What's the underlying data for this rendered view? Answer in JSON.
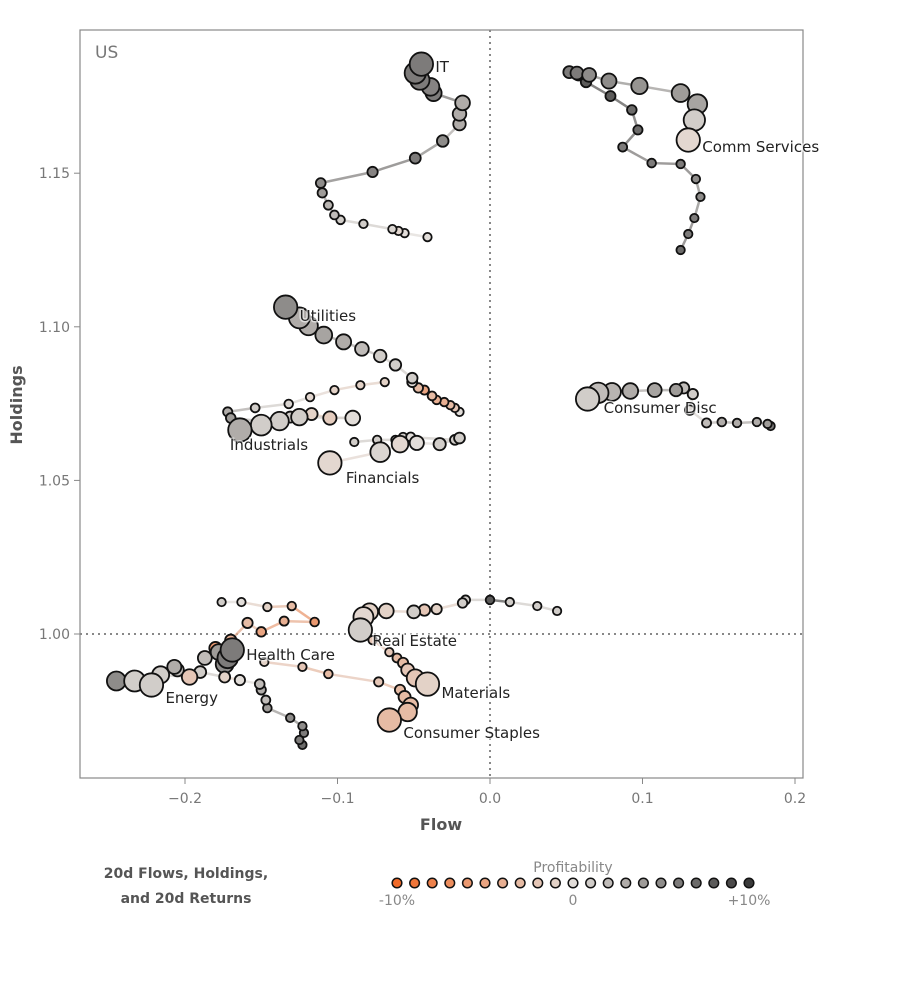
{
  "chart_data": {
    "type": "scatter",
    "panel_label": "US",
    "xlabel": "Flow",
    "ylabel": "Holdings",
    "xlim": [
      -0.269,
      0.205
    ],
    "ylim": [
      0.953,
      1.197
    ],
    "xticks": [
      -0.2,
      -0.1,
      0.0,
      0.1,
      0.2
    ],
    "xtick_labels": [
      "−0.2",
      "−0.1",
      "0.0",
      "0.1",
      "0.2"
    ],
    "yticks": [
      1.0,
      1.05,
      1.1,
      1.15
    ],
    "ytick_labels": [
      "1.00",
      "1.05",
      "1.10",
      "1.15"
    ],
    "reference_lines": {
      "x": 0.0,
      "y": 1.0,
      "style": "dotted"
    },
    "grid": false,
    "color_by": "profitability",
    "series": [
      {
        "name": "IT",
        "points": [
          [
            -0.041,
            1.1292,
            0.0
          ],
          [
            -0.056,
            1.1305,
            0.0
          ],
          [
            -0.06,
            1.1312,
            -0.005
          ],
          [
            -0.064,
            1.1318,
            0.005
          ],
          [
            -0.083,
            1.1335,
            0.01
          ],
          [
            -0.098,
            1.1348,
            0.01
          ],
          [
            -0.102,
            1.1364,
            0.02
          ],
          [
            -0.106,
            1.1396,
            0.025
          ],
          [
            -0.11,
            1.1436,
            0.04
          ],
          [
            -0.111,
            1.1468,
            0.05
          ],
          [
            -0.077,
            1.1504,
            0.055
          ],
          [
            -0.049,
            1.1549,
            0.06
          ],
          [
            -0.031,
            1.1605,
            0.05
          ],
          [
            -0.02,
            1.166,
            0.03
          ],
          [
            -0.02,
            1.1693,
            0.03
          ],
          [
            -0.018,
            1.1729,
            0.03
          ],
          [
            -0.037,
            1.1761,
            0.06
          ],
          [
            -0.039,
            1.1781,
            0.055
          ],
          [
            -0.046,
            1.1803,
            0.06
          ],
          [
            -0.049,
            1.1826,
            0.06
          ],
          [
            -0.045,
            1.1855,
            0.06
          ]
        ]
      },
      {
        "name": "Comm Services",
        "points": [
          [
            0.125,
            1.125,
            0.07
          ],
          [
            0.13,
            1.1302,
            0.06
          ],
          [
            0.134,
            1.1354,
            0.06
          ],
          [
            0.138,
            1.1423,
            0.05
          ],
          [
            0.135,
            1.1481,
            0.05
          ],
          [
            0.125,
            1.153,
            0.06
          ],
          [
            0.106,
            1.1533,
            0.06
          ],
          [
            0.087,
            1.1585,
            0.06
          ],
          [
            0.097,
            1.1641,
            0.07
          ],
          [
            0.093,
            1.1706,
            0.07
          ],
          [
            0.079,
            1.1751,
            0.08
          ],
          [
            0.063,
            1.1797,
            0.08
          ],
          [
            0.058,
            1.182,
            0.07
          ],
          [
            0.052,
            1.1829,
            0.06
          ],
          [
            0.057,
            1.1826,
            0.06
          ],
          [
            0.065,
            1.182,
            0.05
          ],
          [
            0.078,
            1.18,
            0.05
          ],
          [
            0.098,
            1.1784,
            0.045
          ],
          [
            0.125,
            1.1761,
            0.04
          ],
          [
            0.136,
            1.1725,
            0.035
          ],
          [
            0.134,
            1.1673,
            0.01
          ],
          [
            0.13,
            1.1608,
            -0.005
          ]
        ]
      },
      {
        "name": "Utilities",
        "points": [
          [
            -0.02,
            1.0723,
            0.0
          ],
          [
            -0.023,
            1.0736,
            -0.02
          ],
          [
            -0.026,
            1.0745,
            -0.03
          ],
          [
            -0.03,
            1.0755,
            -0.04
          ],
          [
            -0.035,
            1.0762,
            -0.04
          ],
          [
            -0.038,
            1.0775,
            -0.03
          ],
          [
            -0.043,
            1.0794,
            -0.05
          ],
          [
            -0.047,
            1.0801,
            -0.03
          ],
          [
            -0.051,
            1.082,
            0.0
          ],
          [
            -0.051,
            1.0833,
            0.01
          ],
          [
            -0.062,
            1.0876,
            0.01
          ],
          [
            -0.072,
            1.0905,
            0.01
          ],
          [
            -0.084,
            1.0928,
            0.02
          ],
          [
            -0.096,
            1.0951,
            0.03
          ],
          [
            -0.109,
            1.0973,
            0.035
          ],
          [
            -0.119,
            1.1003,
            0.03
          ],
          [
            -0.125,
            1.1029,
            0.03
          ],
          [
            -0.134,
            1.1064,
            0.05
          ]
        ]
      },
      {
        "name": "Industrials",
        "points": [
          [
            -0.069,
            1.082,
            -0.01
          ],
          [
            -0.085,
            1.081,
            -0.01
          ],
          [
            -0.102,
            1.0794,
            -0.01
          ],
          [
            -0.118,
            1.0771,
            -0.005
          ],
          [
            -0.132,
            1.0749,
            0.005
          ],
          [
            -0.154,
            1.0736,
            0.01
          ],
          [
            -0.172,
            1.0723,
            0.03
          ],
          [
            -0.17,
            1.0703,
            0.04
          ],
          [
            -0.15,
            1.0693,
            0.02
          ],
          [
            -0.131,
            1.0706,
            0.01
          ],
          [
            -0.117,
            1.0716,
            -0.01
          ],
          [
            -0.105,
            1.0703,
            -0.015
          ],
          [
            -0.09,
            1.0703,
            0.0
          ],
          [
            -0.125,
            1.0706,
            0.01
          ],
          [
            -0.138,
            1.0693,
            0.01
          ],
          [
            -0.15,
            1.068,
            0.01
          ],
          [
            -0.164,
            1.0664,
            0.03
          ]
        ]
      },
      {
        "name": "Financials",
        "points": [
          [
            -0.089,
            1.0625,
            0.01
          ],
          [
            -0.074,
            1.0632,
            0.01
          ],
          [
            -0.062,
            1.0632,
            0.01
          ],
          [
            -0.057,
            1.0641,
            0.01
          ],
          [
            -0.052,
            1.0641,
            0.0
          ],
          [
            -0.023,
            1.0632,
            0.01
          ],
          [
            -0.02,
            1.0638,
            0.01
          ],
          [
            -0.033,
            1.0618,
            0.01
          ],
          [
            -0.048,
            1.0622,
            0.0
          ],
          [
            -0.059,
            1.0618,
            -0.005
          ],
          [
            -0.072,
            1.0592,
            0.005
          ],
          [
            -0.105,
            1.0557,
            -0.005
          ]
        ]
      },
      {
        "name": "Consumer Disc",
        "points": [
          [
            0.184,
            1.0677,
            0.06
          ],
          [
            0.182,
            1.0684,
            0.04
          ],
          [
            0.175,
            1.069,
            0.03
          ],
          [
            0.162,
            1.0687,
            0.03
          ],
          [
            0.152,
            1.069,
            0.03
          ],
          [
            0.142,
            1.0687,
            0.02
          ],
          [
            0.131,
            1.0729,
            0.005
          ],
          [
            0.133,
            1.0781,
            0.01
          ],
          [
            0.127,
            1.0801,
            0.02
          ],
          [
            0.122,
            1.0794,
            0.04
          ],
          [
            0.108,
            1.0794,
            0.035
          ],
          [
            0.092,
            1.0791,
            0.03
          ],
          [
            0.08,
            1.0788,
            0.025
          ],
          [
            0.071,
            1.0785,
            0.02
          ],
          [
            0.064,
            1.0765,
            0.01
          ]
        ]
      },
      {
        "name": "Real Estate",
        "points": [
          [
            0.044,
            1.0075,
            0.01
          ],
          [
            0.031,
            1.0091,
            0.01
          ],
          [
            0.013,
            1.0104,
            0.01
          ],
          [
            0.0,
            1.0111,
            0.08
          ],
          [
            -0.016,
            1.0111,
            0.01
          ],
          [
            -0.018,
            1.0101,
            0.01
          ],
          [
            -0.035,
            1.0081,
            -0.01
          ],
          [
            -0.043,
            1.0078,
            -0.02
          ],
          [
            -0.05,
            1.0072,
            0.01
          ],
          [
            -0.068,
            1.0075,
            -0.01
          ],
          [
            -0.079,
            1.0072,
            -0.01
          ],
          [
            -0.083,
            1.0055,
            -0.005
          ],
          [
            -0.085,
            1.0013,
            0.01
          ]
        ]
      },
      {
        "name": "Health Care",
        "points": [
          [
            -0.176,
            1.0104,
            0.01
          ],
          [
            -0.163,
            1.0104,
            0.0
          ],
          [
            -0.146,
            1.0088,
            -0.01
          ],
          [
            -0.13,
            1.0091,
            -0.03
          ],
          [
            -0.115,
            1.0039,
            -0.06
          ],
          [
            -0.135,
            1.0042,
            -0.04
          ],
          [
            -0.15,
            1.0007,
            -0.05
          ],
          [
            -0.159,
            1.0036,
            -0.03
          ],
          [
            -0.17,
            0.998,
            -0.04
          ],
          [
            -0.18,
            0.9954,
            -0.06
          ],
          [
            -0.187,
            0.9922,
            0.02
          ],
          [
            -0.178,
            0.9941,
            0.04
          ],
          [
            -0.174,
            0.9902,
            0.05
          ],
          [
            -0.172,
            0.9922,
            0.06
          ],
          [
            -0.169,
            0.9948,
            0.06
          ]
        ]
      },
      {
        "name": "Materials",
        "points": [
          [
            -0.077,
            0.998,
            -0.02
          ],
          [
            -0.066,
            0.9941,
            -0.02
          ],
          [
            -0.061,
            0.9922,
            -0.03
          ],
          [
            -0.057,
            0.9906,
            -0.03
          ],
          [
            -0.054,
            0.9883,
            -0.02
          ],
          [
            -0.049,
            0.9857,
            -0.02
          ],
          [
            -0.041,
            0.9837,
            -0.01
          ]
        ]
      },
      {
        "name": "Consumer Staples",
        "points": [
          [
            -0.148,
            0.9909,
            -0.01
          ],
          [
            -0.123,
            0.9893,
            -0.02
          ],
          [
            -0.106,
            0.987,
            -0.03
          ],
          [
            -0.073,
            0.9844,
            -0.02
          ],
          [
            -0.059,
            0.9818,
            -0.03
          ],
          [
            -0.056,
            0.9795,
            -0.03
          ],
          [
            -0.052,
            0.9769,
            -0.03
          ],
          [
            -0.054,
            0.9746,
            -0.03
          ],
          [
            -0.066,
            0.972,
            -0.03
          ]
        ]
      },
      {
        "name": "Energy",
        "points": [
          [
            -0.123,
            0.9639,
            0.07
          ],
          [
            -0.125,
            0.9655,
            0.06
          ],
          [
            -0.122,
            0.9678,
            0.06
          ],
          [
            -0.123,
            0.97,
            0.05
          ],
          [
            -0.131,
            0.9727,
            0.05
          ],
          [
            -0.146,
            0.9759,
            0.04
          ],
          [
            -0.147,
            0.9785,
            0.02
          ],
          [
            -0.15,
            0.9818,
            0.03
          ],
          [
            -0.151,
            0.9837,
            0.02
          ],
          [
            -0.164,
            0.985,
            0.0
          ],
          [
            -0.174,
            0.986,
            -0.01
          ],
          [
            -0.19,
            0.9876,
            0.01
          ],
          [
            -0.205,
            0.9883,
            0.02
          ],
          [
            -0.207,
            0.9893,
            0.03
          ],
          [
            -0.197,
            0.986,
            -0.02
          ],
          [
            -0.216,
            0.9867,
            0.01
          ],
          [
            -0.245,
            0.9847,
            0.05
          ],
          [
            -0.233,
            0.9847,
            0.01
          ],
          [
            -0.222,
            0.9834,
            0.01
          ]
        ]
      }
    ],
    "legend": {
      "title_line1": "20d Flows, Holdings,",
      "title_line2": "and 20d Returns",
      "scale_title": "Profitability",
      "scale_min_label": "-10%",
      "scale_mid_label": "0",
      "scale_max_label": "+10%",
      "scale_range": [
        -0.1,
        0.1
      ],
      "scale_steps": 21
    },
    "colors": {
      "negative": "#f06a28",
      "neutral": "#e2ddd9",
      "positive": "#3a3a3a",
      "frame": "#888888",
      "refline": "#888888"
    }
  }
}
